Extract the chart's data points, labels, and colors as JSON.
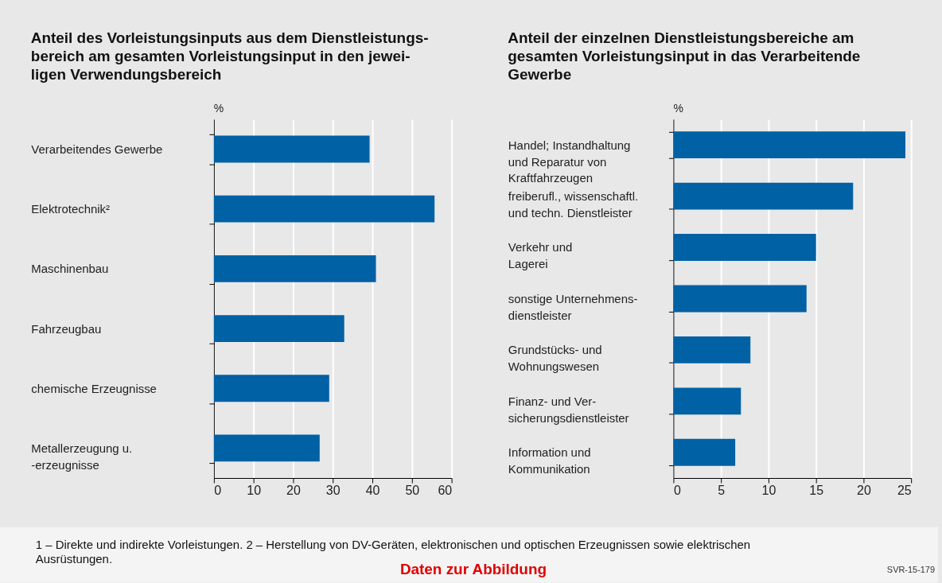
{
  "chart_data": [
    {
      "type": "bar",
      "orientation": "horizontal",
      "title": "Anteil des Vorleistungsinputs aus dem Dienstleistungs-\nbereich am gesamten Vorleistungsinput in den jewei-\nligen Verwendungsbereich",
      "xlabel": "%",
      "categories": [
        "Verarbeitendes Gewerbe",
        "Elektrotechnik²",
        "Maschinenbau",
        "Fahrzeugbau",
        "chemische Erzeugnisse",
        "Metallerzeugung u.\n-erzeugnisse"
      ],
      "series": [
        {
          "color": "#0061a5",
          "values": [
            39.3,
            55.7,
            40.9,
            32.9,
            29.1,
            26.7
          ]
        }
      ],
      "xlim": [
        0,
        60
      ],
      "xticks": [
        0,
        10,
        20,
        30,
        40,
        50,
        60
      ],
      "grid": "x",
      "legend": false,
      "annotations": [
        "1 – Direkte und indirekte Vorleistungen.  2 – Herstellung von DV-Geräten, elektronischen und optischen Erzeugnissen sowie elektrischen\nAusrüstungen.",
        "Daten zur Abbildung",
        "SVR-15-179"
      ]
    },
    {
      "type": "bar",
      "orientation": "horizontal",
      "title": "Anteil der einzelnen Dienstleistungsbereiche am\ngesamten Vorleistungsinput in das Verarbeitende\nGewerbe",
      "xlabel": "%",
      "categories": [
        "Handel; Instandhaltung\nund Reparatur von\nKraftfahrzeugen",
        "freiberufl., wissenschaftl.\nund techn. Dienstleister",
        "Verkehr und\nLagerei",
        "sonstige Unternehmens-\ndienstleister",
        "Grundstücks- und\nWohnungswesen",
        "Finanz- und Ver-\nsicherungsdienstleister",
        "Information und\nKommunikation"
      ],
      "series": [
        {
          "color": "#0061a5",
          "values": [
            24.4,
            18.9,
            15.0,
            14.0,
            8.1,
            7.1,
            6.5
          ]
        }
      ],
      "xlim": [
        0,
        25
      ],
      "xticks": [
        0,
        5,
        10,
        15,
        20,
        25
      ],
      "grid": "x",
      "legend": false
    }
  ]
}
